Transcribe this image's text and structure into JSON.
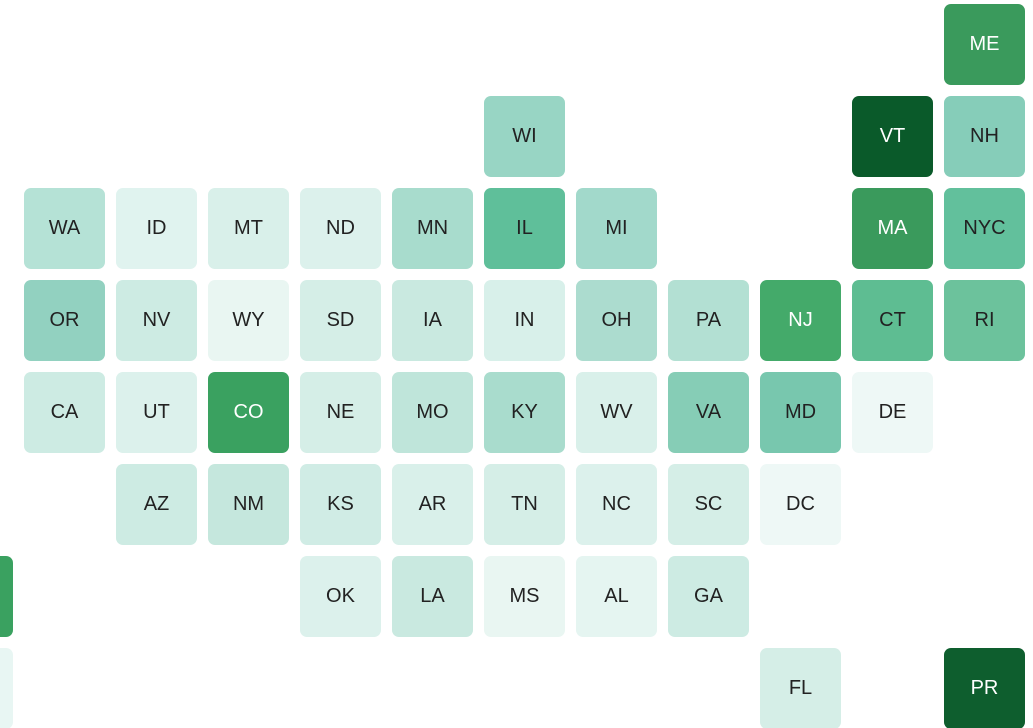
{
  "tiles": {
    "rows": [
      [
        null,
        null,
        null,
        null,
        null,
        null,
        null,
        null,
        null,
        null,
        null,
        {
          "label": "ME",
          "color": "#3a9a5c"
        }
      ],
      [
        null,
        null,
        null,
        null,
        null,
        null,
        {
          "label": "WI",
          "color": "#98d5c4"
        },
        null,
        null,
        null,
        {
          "label": "VT",
          "color": "#0a5a2a"
        },
        {
          "label": "NH",
          "color": "#86cdb9"
        }
      ],
      [
        null,
        {
          "label": "WA",
          "color": "#b5e2d6"
        },
        {
          "label": "ID",
          "color": "#e0f3ef"
        },
        {
          "label": "MT",
          "color": "#d9f0ea"
        },
        {
          "label": "ND",
          "color": "#dcf1ec"
        },
        {
          "label": "MN",
          "color": "#a8dccd"
        },
        {
          "label": "IL",
          "color": "#5fbf9a"
        },
        {
          "label": "MI",
          "color": "#a2d9cb"
        },
        null,
        null,
        {
          "label": "MA",
          "color": "#3a9a5c"
        },
        {
          "label": "NYC",
          "color": "#62c09c"
        }
      ],
      [
        null,
        {
          "label": "OR",
          "color": "#92d1c0"
        },
        {
          "label": "NV",
          "color": "#cdebe3"
        },
        {
          "label": "WY",
          "color": "#e9f6f2"
        },
        {
          "label": "SD",
          "color": "#d5eee7"
        },
        {
          "label": "IA",
          "color": "#c9e9e0"
        },
        {
          "label": "IN",
          "color": "#d8f0ea"
        },
        {
          "label": "OH",
          "color": "#acdccf"
        },
        {
          "label": "PA",
          "color": "#b3e0d3"
        },
        {
          "label": "NJ",
          "color": "#44aa6a"
        },
        {
          "label": "CT",
          "color": "#5ebd92"
        },
        {
          "label": "RI",
          "color": "#6cc29c"
        }
      ],
      [
        null,
        {
          "label": "CA",
          "color": "#cdebe3"
        },
        {
          "label": "UT",
          "color": "#dcf1ec"
        },
        {
          "label": "CO",
          "color": "#3aa160"
        },
        {
          "label": "NE",
          "color": "#d5eee7"
        },
        {
          "label": "MO",
          "color": "#bfe5da"
        },
        {
          "label": "KY",
          "color": "#a9dccd"
        },
        {
          "label": "WV",
          "color": "#d9f0ea"
        },
        {
          "label": "VA",
          "color": "#86cdb6"
        },
        {
          "label": "MD",
          "color": "#78c7ae"
        },
        {
          "label": "DE",
          "color": "#eef8f6"
        },
        null
      ],
      [
        null,
        null,
        {
          "label": "AZ",
          "color": "#cdebe3"
        },
        {
          "label": "NM",
          "color": "#c5e7dd"
        },
        {
          "label": "KS",
          "color": "#d0ece5"
        },
        {
          "label": "AR",
          "color": "#d9f0ea"
        },
        {
          "label": "TN",
          "color": "#d5eee7"
        },
        {
          "label": "NC",
          "color": "#dcf1ec"
        },
        {
          "label": "SC",
          "color": "#d5eee7"
        },
        {
          "label": "DC",
          "color": "#eef8f6"
        },
        null,
        null
      ],
      [
        {
          "color": "#3aa160"
        },
        null,
        null,
        null,
        {
          "label": "OK",
          "color": "#dcf1ec"
        },
        {
          "label": "LA",
          "color": "#c9e9e0"
        },
        {
          "label": "MS",
          "color": "#e9f6f2"
        },
        {
          "label": "AL",
          "color": "#e5f5f1"
        },
        {
          "label": "GA",
          "color": "#cdebe3"
        },
        null,
        null,
        null
      ],
      [
        {
          "color": "#e8f6f3"
        },
        null,
        null,
        null,
        null,
        null,
        null,
        null,
        null,
        {
          "label": "FL",
          "color": "#d5eee7"
        },
        null,
        {
          "label": "PR",
          "color": "#0e5e2e"
        }
      ]
    ]
  }
}
